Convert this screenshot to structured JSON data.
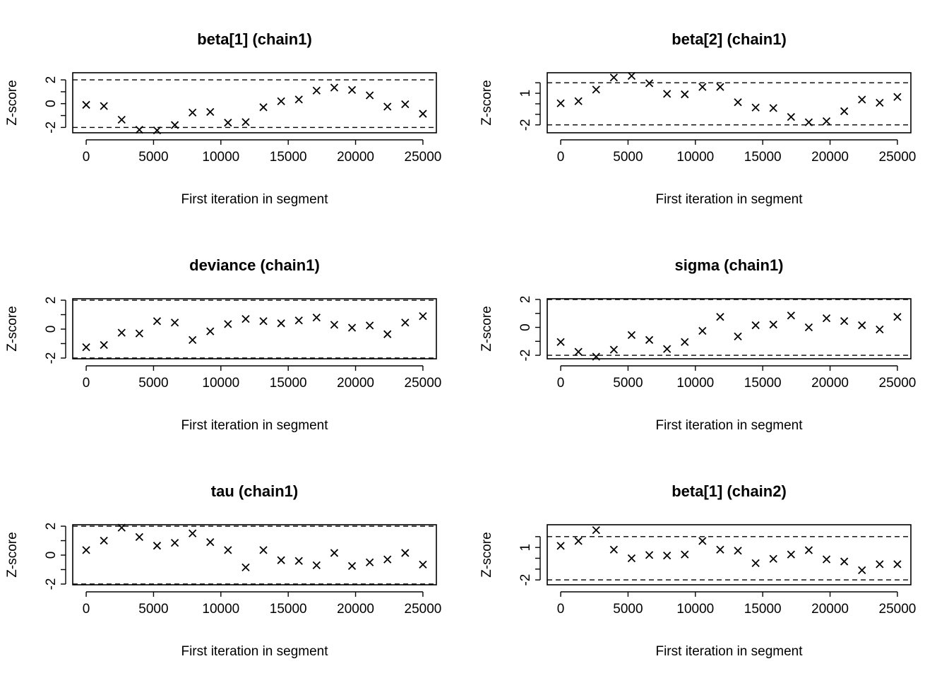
{
  "chart_data": [
    {
      "type": "scatter",
      "title": "beta[1] (chain1)",
      "xlabel": "First iteration in segment",
      "ylabel": "Z-score",
      "xlim": [
        -1000,
        26000
      ],
      "ylim": [
        -2.45,
        2.6
      ],
      "xticks": [
        0,
        5000,
        10000,
        15000,
        20000,
        25000
      ],
      "yticks": [
        -2,
        -1,
        0,
        1,
        2
      ],
      "yticklabels": [
        -2,
        0,
        2
      ],
      "reference_lines": [
        -2,
        2
      ],
      "x": [
        0,
        1316,
        2632,
        3947,
        5263,
        6579,
        7895,
        9211,
        10526,
        11842,
        13158,
        14474,
        15789,
        17105,
        18421,
        19737,
        21053,
        22368,
        23684,
        25000
      ],
      "y": [
        -0.1,
        -0.2,
        -1.35,
        -2.2,
        -2.25,
        -1.8,
        -0.75,
        -0.7,
        -1.6,
        -1.55,
        -0.3,
        0.2,
        0.35,
        1.1,
        1.35,
        1.15,
        0.7,
        -0.25,
        -0.05,
        -0.85
      ]
    },
    {
      "type": "scatter",
      "title": "beta[2] (chain1)",
      "xlabel": "First iteration in segment",
      "ylabel": "Z-score",
      "xlim": [
        -1000,
        26000
      ],
      "ylim": [
        -2.75,
        2.95
      ],
      "xticks": [
        0,
        5000,
        10000,
        15000,
        20000,
        25000
      ],
      "yticks": [
        -2,
        -1,
        0,
        1,
        2
      ],
      "yticklabels": [
        -2,
        1
      ],
      "reference_lines": [
        -2,
        2
      ],
      "x": [
        0,
        1316,
        2632,
        3947,
        5263,
        6579,
        7895,
        9211,
        10526,
        11842,
        13158,
        14474,
        15789,
        17105,
        18421,
        19737,
        21053,
        22368,
        23684,
        25000
      ],
      "y": [
        0.05,
        0.25,
        1.35,
        2.5,
        2.65,
        1.95,
        0.95,
        0.9,
        1.6,
        1.6,
        0.15,
        -0.35,
        -0.4,
        -1.25,
        -1.75,
        -1.65,
        -0.7,
        0.4,
        0.1,
        0.65
      ]
    },
    {
      "type": "scatter",
      "title": "deviance (chain1)",
      "xlabel": "First iteration in segment",
      "ylabel": "Z-score",
      "xlim": [
        -1000,
        26000
      ],
      "ylim": [
        -2.05,
        2.1
      ],
      "xticks": [
        0,
        5000,
        10000,
        15000,
        20000,
        25000
      ],
      "yticks": [
        -2,
        -1,
        0,
        1,
        2
      ],
      "yticklabels": [
        -2,
        0,
        2
      ],
      "reference_lines": [
        -2,
        2
      ],
      "x": [
        0,
        1316,
        2632,
        3947,
        5263,
        6579,
        7895,
        9211,
        10526,
        11842,
        13158,
        14474,
        15789,
        17105,
        18421,
        19737,
        21053,
        22368,
        23684,
        25000
      ],
      "y": [
        -1.25,
        -1.1,
        -0.25,
        -0.3,
        0.55,
        0.45,
        -0.75,
        -0.15,
        0.35,
        0.7,
        0.55,
        0.4,
        0.6,
        0.8,
        0.3,
        0.1,
        0.25,
        -0.35,
        0.45,
        0.9
      ]
    },
    {
      "type": "scatter",
      "title": "sigma (chain1)",
      "xlabel": "First iteration in segment",
      "ylabel": "Z-score",
      "xlim": [
        -1000,
        26000
      ],
      "ylim": [
        -2.25,
        2.05
      ],
      "xticks": [
        0,
        5000,
        10000,
        15000,
        20000,
        25000
      ],
      "yticks": [
        -2,
        -1,
        0,
        1,
        2
      ],
      "yticklabels": [
        -2,
        0,
        2
      ],
      "reference_lines": [
        -2,
        2
      ],
      "x": [
        0,
        1316,
        2632,
        3947,
        5263,
        6579,
        7895,
        9211,
        10526,
        11842,
        13158,
        14474,
        15789,
        17105,
        18421,
        19737,
        21053,
        22368,
        23684,
        25000
      ],
      "y": [
        -1.05,
        -1.75,
        -2.1,
        -1.6,
        -0.55,
        -0.9,
        -1.55,
        -1.05,
        -0.25,
        0.75,
        -0.65,
        0.15,
        0.2,
        0.85,
        0.0,
        0.65,
        0.45,
        0.15,
        -0.15,
        0.75
      ]
    },
    {
      "type": "scatter",
      "title": "tau (chain1)",
      "xlabel": "First iteration in segment",
      "ylabel": "Z-score",
      "xlim": [
        -1000,
        26000
      ],
      "ylim": [
        -2.05,
        2.1
      ],
      "xticks": [
        0,
        5000,
        10000,
        15000,
        20000,
        25000
      ],
      "yticks": [
        -2,
        -1,
        0,
        1,
        2
      ],
      "yticklabels": [
        -2,
        0,
        2
      ],
      "reference_lines": [
        -2,
        2
      ],
      "x": [
        0,
        1316,
        2632,
        3947,
        5263,
        6579,
        7895,
        9211,
        10526,
        11842,
        13158,
        14474,
        15789,
        17105,
        18421,
        19737,
        21053,
        22368,
        23684,
        25000
      ],
      "y": [
        0.35,
        1.0,
        1.9,
        1.25,
        0.65,
        0.85,
        1.5,
        0.9,
        0.35,
        -0.85,
        0.35,
        -0.35,
        -0.4,
        -0.7,
        0.15,
        -0.75,
        -0.5,
        -0.3,
        0.15,
        -0.65
      ]
    },
    {
      "type": "scatter",
      "title": "beta[1] (chain2)",
      "xlabel": "First iteration in segment",
      "ylabel": "Z-score",
      "xlim": [
        -1000,
        26000
      ],
      "ylim": [
        -2.45,
        3.1
      ],
      "xticks": [
        0,
        5000,
        10000,
        15000,
        20000,
        25000
      ],
      "yticks": [
        -2,
        -1,
        0,
        1,
        2
      ],
      "yticklabels": [
        -2,
        1
      ],
      "reference_lines": [
        -2,
        2
      ],
      "x": [
        0,
        1316,
        2632,
        3947,
        5263,
        6579,
        7895,
        9211,
        10526,
        11842,
        13158,
        14474,
        15789,
        17105,
        18421,
        19737,
        21053,
        22368,
        23684,
        25000
      ],
      "y": [
        1.15,
        1.6,
        2.6,
        0.8,
        0.0,
        0.3,
        0.25,
        0.35,
        1.6,
        0.8,
        0.7,
        -0.45,
        -0.05,
        0.35,
        0.75,
        -0.1,
        -0.3,
        -1.1,
        -0.55,
        -0.55
      ]
    }
  ]
}
